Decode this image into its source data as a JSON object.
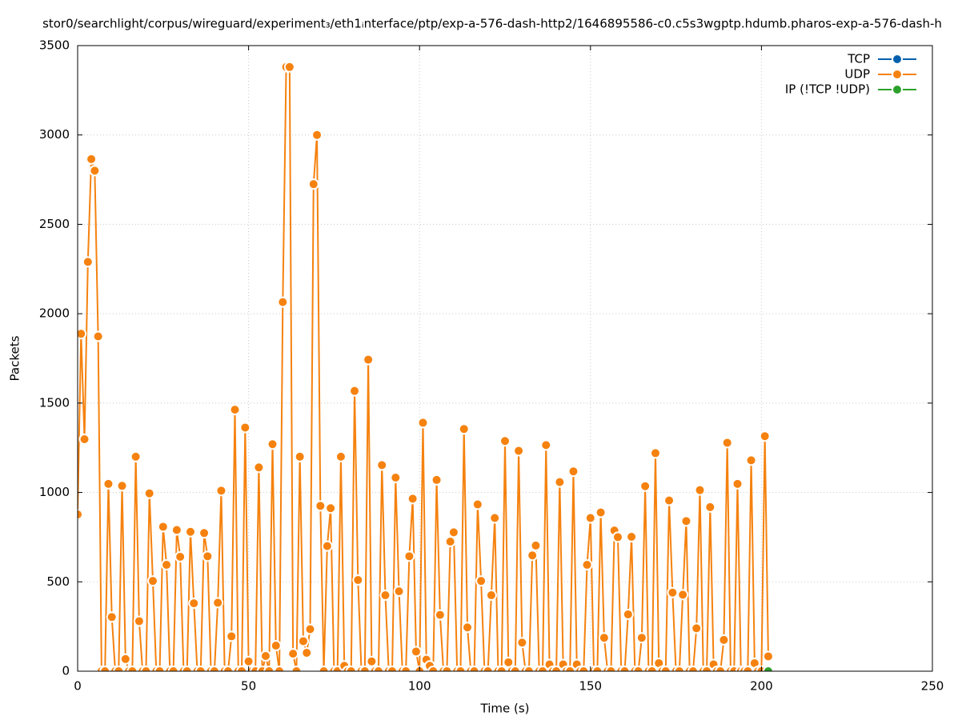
{
  "chart_data": {
    "type": "line",
    "title": "stor0/searchlight/corpus/wireguard/experiment₃/eth1ᵢnterface/ptp/exp-a-576-dash-http2/1646895586-c0.c5s3wgptp.hdumb.pharos-exp-a-576-dash-h",
    "x_label": "Time (s)",
    "y_label": "Packets",
    "xlim": [
      0,
      250
    ],
    "xticks": [
      0,
      50,
      100,
      150,
      200,
      250
    ],
    "ylim": [
      0,
      3500
    ],
    "yticks": [
      0,
      500,
      1000,
      1500,
      2000,
      2500,
      3000,
      3500
    ],
    "grid": true,
    "legend": "top-right",
    "series": [
      {
        "name": "TCP",
        "color": "#0060ad",
        "x": [],
        "values": []
      },
      {
        "name": "UDP",
        "color": "#f5820f",
        "x": [
          0,
          1,
          2,
          3,
          4,
          5,
          6,
          7,
          8,
          9,
          10,
          11,
          12,
          13,
          14,
          15,
          16,
          17,
          18,
          19,
          20,
          21,
          22,
          23,
          24,
          25,
          26,
          27,
          28,
          29,
          30,
          31,
          32,
          33,
          34,
          35,
          36,
          37,
          38,
          39,
          40,
          41,
          42,
          43,
          44,
          45,
          46,
          47,
          48,
          49,
          50,
          51,
          52,
          53,
          54,
          55,
          56,
          57,
          58,
          59,
          60,
          61,
          62,
          63,
          64,
          65,
          66,
          67,
          68,
          69,
          70,
          71,
          72,
          73,
          74,
          75,
          76,
          77,
          78,
          79,
          80,
          81,
          82,
          83,
          84,
          85,
          86,
          87,
          88,
          89,
          90,
          91,
          92,
          93,
          94,
          95,
          96,
          97,
          98,
          99,
          100,
          101,
          102,
          103,
          104,
          105,
          106,
          107,
          108,
          109,
          110,
          111,
          112,
          113,
          114,
          115,
          116,
          117,
          118,
          119,
          120,
          121,
          122,
          123,
          124,
          125,
          126,
          127,
          128,
          129,
          130,
          131,
          132,
          133,
          134,
          135,
          136,
          137,
          138,
          139,
          140,
          141,
          142,
          143,
          144,
          145,
          146,
          147,
          148,
          149,
          150,
          151,
          152,
          153,
          154,
          155,
          156,
          157,
          158,
          159,
          160,
          161,
          162,
          163,
          164,
          165,
          166,
          167,
          168,
          169,
          170,
          171,
          172,
          173,
          174,
          175,
          176,
          177,
          178,
          179,
          180,
          181,
          182,
          183,
          184,
          185,
          186,
          187,
          188,
          189,
          190,
          191,
          192,
          193,
          194,
          195,
          196,
          197,
          198,
          199,
          200,
          201,
          202
        ],
        "values": [
          877,
          1888,
          1298,
          2290,
          2865,
          2800,
          1873,
          0,
          0,
          1048,
          303,
          0,
          0,
          1037,
          68,
          0,
          0,
          1200,
          280,
          0,
          0,
          995,
          505,
          0,
          0,
          808,
          595,
          0,
          0,
          790,
          640,
          0,
          0,
          780,
          380,
          0,
          0,
          773,
          643,
          0,
          0,
          383,
          1010,
          0,
          0,
          195,
          1463,
          0,
          0,
          1363,
          55,
          0,
          0,
          1140,
          0,
          85,
          0,
          1270,
          143,
          0,
          2065,
          3380,
          3380,
          98,
          0,
          1200,
          168,
          103,
          235,
          2725,
          3000,
          925,
          0,
          700,
          912,
          0,
          0,
          1200,
          30,
          0,
          0,
          1568,
          510,
          0,
          0,
          1743,
          55,
          0,
          0,
          1153,
          425,
          0,
          0,
          1083,
          447,
          0,
          0,
          643,
          965,
          110,
          0,
          1390,
          65,
          30,
          0,
          1070,
          315,
          0,
          0,
          725,
          777,
          0,
          0,
          1355,
          245,
          0,
          0,
          933,
          505,
          0,
          0,
          425,
          857,
          0,
          0,
          1288,
          50,
          0,
          0,
          1233,
          160,
          0,
          0,
          648,
          703,
          0,
          0,
          1265,
          38,
          0,
          0,
          1058,
          38,
          0,
          0,
          1118,
          38,
          0,
          0,
          595,
          857,
          0,
          0,
          888,
          187,
          0,
          0,
          787,
          750,
          0,
          0,
          318,
          752,
          0,
          0,
          187,
          1035,
          0,
          0,
          1220,
          45,
          0,
          0,
          955,
          440,
          0,
          0,
          428,
          840,
          0,
          0,
          240,
          1013,
          0,
          0,
          918,
          38,
          0,
          0,
          175,
          1278,
          0,
          0,
          1048,
          0,
          0,
          0,
          1180,
          45,
          0,
          0,
          1315,
          83
        ]
      },
      {
        "name": "IP (!TCP  !UDP)",
        "color": "#2ca02c",
        "x": [
          202
        ],
        "values": [
          0
        ]
      }
    ]
  }
}
